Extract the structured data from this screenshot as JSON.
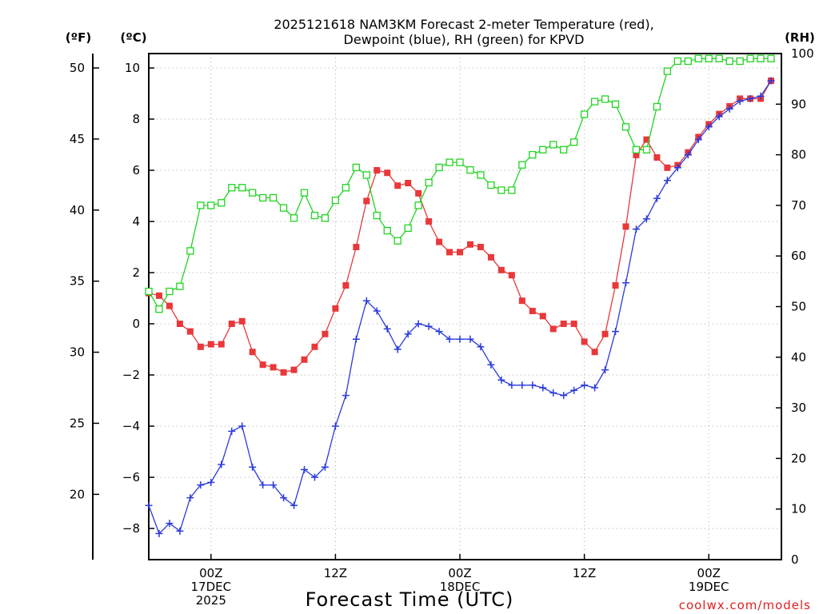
{
  "chart_data": {
    "type": "line",
    "title": [
      "2025121618 NAM3KM Forecast 2-meter Temperature (red),",
      "Dewpoint (blue), RH (green) for KPVD"
    ],
    "xlabel": "Forecast Time (UTC)",
    "credit": "coolwx.com/models",
    "units": {
      "fahrenheit": "(ºF)",
      "celsius": "(ºC)",
      "rh": "(RH)"
    },
    "x_range_hours": [
      0,
      61
    ],
    "y_celsius_range": [
      -9,
      10.5
    ],
    "y_rh_range": [
      0,
      100
    ],
    "x_ticks": [
      {
        "hour": 6,
        "label": [
          "00Z",
          "17DEC",
          "2025"
        ]
      },
      {
        "hour": 18,
        "label": [
          "12Z"
        ]
      },
      {
        "hour": 30,
        "label": [
          "00Z",
          "18DEC"
        ]
      },
      {
        "hour": 42,
        "label": [
          "12Z"
        ]
      },
      {
        "hour": 54,
        "label": [
          "00Z",
          "19DEC"
        ]
      }
    ],
    "y_celsius_ticks": [
      "10",
      "8",
      "6",
      "4",
      "2",
      "0",
      "−2",
      "−4",
      "−6",
      "−8"
    ],
    "y_fahrenheit_ticks": [
      "50",
      "45",
      "40",
      "35",
      "30",
      "25",
      "20"
    ],
    "y_rh_ticks": [
      "100",
      "90",
      "80",
      "70",
      "60",
      "50",
      "40",
      "30",
      "20",
      "10",
      "0"
    ],
    "series": [
      {
        "name": "2-meter Temperature",
        "unit": "C",
        "color": "#e8383a",
        "marker": "filled-square",
        "values": [
          1.2,
          1.1,
          0.7,
          0.0,
          -0.3,
          -0.9,
          -0.8,
          -0.8,
          0.0,
          0.1,
          -1.1,
          -1.6,
          -1.7,
          -1.9,
          -1.8,
          -1.4,
          -0.9,
          -0.4,
          0.6,
          1.5,
          3.0,
          4.8,
          6.0,
          5.9,
          5.4,
          5.5,
          5.1,
          4.0,
          3.2,
          2.8,
          2.8,
          3.1,
          3.0,
          2.6,
          2.1,
          1.9,
          0.9,
          0.5,
          0.3,
          -0.2,
          0.0,
          0.0,
          -0.7,
          -1.1,
          -0.4,
          1.5,
          3.8,
          6.6,
          7.2,
          6.5,
          6.1,
          6.2,
          6.7,
          7.3,
          7.8,
          8.2,
          8.5,
          8.8,
          8.8,
          8.8,
          9.5
        ]
      },
      {
        "name": "Dewpoint",
        "unit": "C",
        "color": "#2b3bdc",
        "marker": "plus",
        "values": [
          -7.1,
          -8.2,
          -7.8,
          -8.1,
          -6.8,
          -6.3,
          -6.2,
          -5.5,
          -4.2,
          -4.0,
          -5.6,
          -6.3,
          -6.3,
          -6.8,
          -7.1,
          -5.7,
          -6.0,
          -5.6,
          -4.0,
          -2.8,
          -0.6,
          0.9,
          0.5,
          -0.2,
          -1.0,
          -0.4,
          0.0,
          -0.1,
          -0.3,
          -0.6,
          -0.6,
          -0.6,
          -0.9,
          -1.6,
          -2.2,
          -2.4,
          -2.4,
          -2.4,
          -2.5,
          -2.7,
          -2.8,
          -2.6,
          -2.4,
          -2.5,
          -1.8,
          -0.3,
          1.6,
          3.7,
          4.1,
          4.9,
          5.6,
          6.1,
          6.6,
          7.2,
          7.7,
          8.1,
          8.4,
          8.7,
          8.8,
          8.9,
          9.5
        ]
      },
      {
        "name": "RH",
        "unit": "%",
        "color": "#22d422",
        "marker": "open-square",
        "values": [
          53.0,
          49.5,
          53.0,
          54.0,
          61.0,
          70.0,
          70.0,
          70.5,
          73.5,
          73.5,
          72.5,
          71.5,
          71.5,
          69.5,
          67.5,
          72.5,
          68.0,
          67.5,
          71.0,
          73.5,
          77.5,
          76.0,
          68.0,
          65.0,
          63.0,
          65.5,
          70.0,
          74.5,
          77.5,
          78.5,
          78.5,
          77.0,
          76.0,
          74.0,
          73.0,
          73.0,
          78.0,
          80.0,
          81.0,
          82.0,
          81.0,
          82.5,
          88.0,
          90.5,
          91.0,
          90.0,
          85.5,
          81.0,
          81.0,
          89.5,
          96.5,
          98.5,
          98.5,
          99.0,
          99.0,
          99.0,
          98.5,
          98.5,
          99.0,
          99.0,
          99.0
        ]
      }
    ]
  }
}
